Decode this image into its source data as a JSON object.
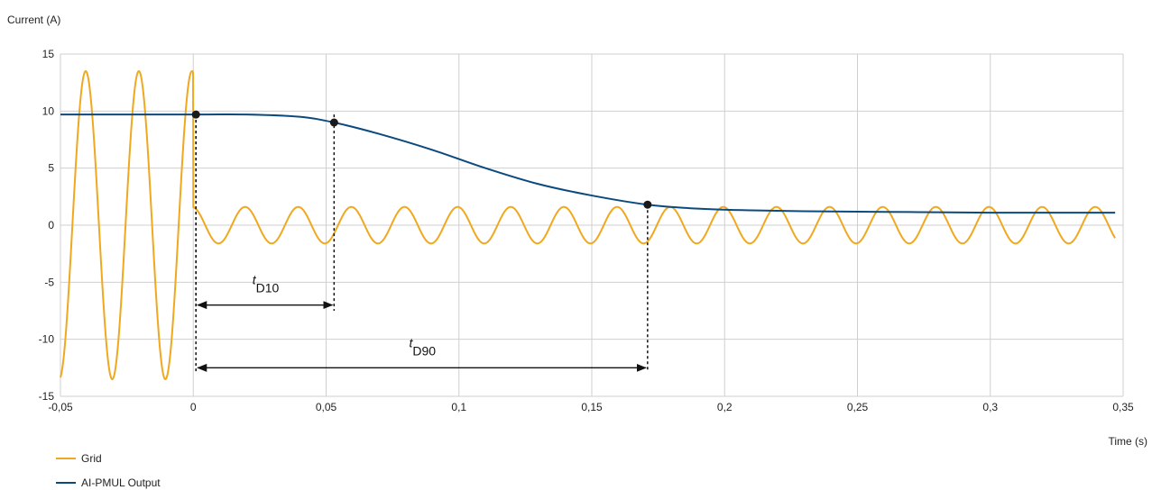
{
  "chart_data": {
    "type": "line",
    "title": "",
    "ylabel": "Current (A)",
    "xlabel": "Time (s)",
    "xlim": [
      -0.05,
      0.35
    ],
    "ylim": [
      -15,
      15
    ],
    "x_ticks": [
      -0.05,
      0,
      0.05,
      0.1,
      0.15,
      0.2,
      0.25,
      0.3,
      0.35
    ],
    "x_tick_labels": [
      "-0,05",
      "0",
      "0,05",
      "0,1",
      "0,15",
      "0,2",
      "0,25",
      "0,3",
      "0,35"
    ],
    "y_ticks": [
      -15,
      -10,
      -5,
      0,
      5,
      10,
      15
    ],
    "y_tick_labels": [
      "-15",
      "-10",
      "-5",
      "0",
      "5",
      "10",
      "15"
    ],
    "grid": true,
    "legend_position": "bottom-left",
    "colors": {
      "grid_series": "#F0A81E",
      "output_series": "#0B4A7F",
      "gridlines": "#cfcfcf"
    },
    "series": [
      {
        "name": "Grid",
        "description": "50 Hz sinusoid: amplitude 13.5 A before t=0, then ~1.6 A ripple after t=0",
        "x_start": -0.05,
        "x_end": 0.347,
        "pre_amplitude": 13.5,
        "post_amplitude": 1.6,
        "frequency_hz": 50,
        "switch_time": 0
      },
      {
        "name": "AI-PMUL Output",
        "x": [
          -0.05,
          0.0,
          0.02,
          0.04,
          0.053,
          0.07,
          0.09,
          0.11,
          0.13,
          0.15,
          0.171,
          0.19,
          0.21,
          0.24,
          0.27,
          0.3,
          0.347
        ],
        "y": [
          9.7,
          9.7,
          9.7,
          9.5,
          9.0,
          8.0,
          6.6,
          5.0,
          3.6,
          2.6,
          1.8,
          1.45,
          1.3,
          1.2,
          1.15,
          1.1,
          1.1
        ]
      }
    ],
    "markers": [
      {
        "x": 0.001,
        "y": 9.7
      },
      {
        "x": 0.053,
        "y": 9.0
      },
      {
        "x": 0.171,
        "y": 1.8
      }
    ],
    "annotations": [
      {
        "label": "t",
        "subscript": "D10",
        "x_from": 0.001,
        "x_to": 0.053,
        "y_arrow": -7,
        "y_text": -5.5,
        "drop_from": 9.7,
        "drop_to_bottom": -7.5
      },
      {
        "label": "t",
        "subscript": "D90",
        "x_from": 0.001,
        "x_to": 0.171,
        "y_arrow": -12.5,
        "y_text": -11.0,
        "drop_from": 1.8,
        "drop_to_bottom": -12.8
      }
    ],
    "legend": [
      {
        "name": "Grid",
        "color": "#F0A81E"
      },
      {
        "name": "AI-PMUL Output",
        "color": "#0B4A7F"
      }
    ]
  }
}
